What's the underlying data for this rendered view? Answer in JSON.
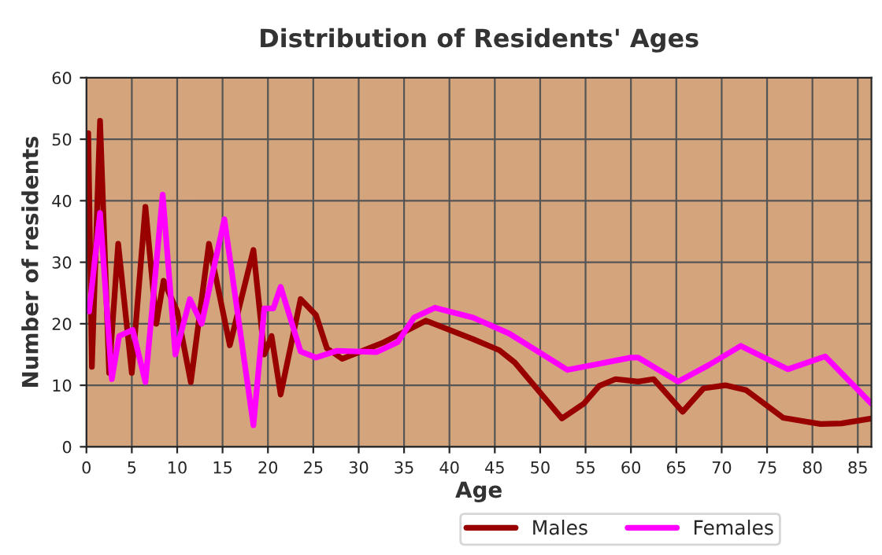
{
  "chart_data": {
    "type": "line",
    "title": "Distribution of Residents' Ages",
    "xlabel": "Age",
    "ylabel": "Number of residents",
    "xlim": [
      0,
      86.5
    ],
    "xticks": [
      0,
      5,
      10,
      15,
      20,
      25,
      30,
      35,
      40,
      45,
      50,
      55,
      60,
      65,
      70,
      75,
      80,
      85
    ],
    "ylim": [
      0,
      60
    ],
    "yticks": [
      0,
      10,
      20,
      30,
      40,
      50,
      60
    ],
    "grid": true,
    "legend": "bottom",
    "series": [
      {
        "name": "Males",
        "color": "#990000",
        "x": [
          0.2,
          0.6,
          1.5,
          2.5,
          3.5,
          5,
          6.5,
          7.7,
          8.5,
          10,
          11.5,
          13.5,
          15.8,
          18.4,
          19.6,
          20.4,
          21.4,
          23.6,
          25.3,
          26.5,
          28.2,
          32.8,
          37.4,
          42.6,
          45.5,
          47.2,
          52.4,
          54.8,
          56.5,
          58.3,
          60.8,
          62.5,
          65.7,
          68,
          70.4,
          72.7,
          76.8,
          80.9,
          83.2,
          86.5
        ],
        "values": [
          51,
          13,
          53,
          12,
          33,
          12,
          39,
          20,
          27,
          22,
          10.5,
          33,
          16.5,
          32,
          15,
          18,
          8.5,
          24,
          21.4,
          16,
          14.3,
          17,
          20.5,
          17.5,
          15.7,
          13.7,
          4.6,
          7,
          9.9,
          11,
          10.6,
          11,
          5.7,
          9.5,
          10,
          9.2,
          4.7,
          3.7,
          3.8,
          4.6
        ]
      },
      {
        "name": "Females",
        "color": "#ff00ff",
        "x": [
          0.3,
          1.5,
          2.8,
          3.6,
          5.1,
          6.5,
          8.4,
          9.8,
          11.4,
          12.7,
          15.2,
          18.4,
          19.6,
          20.6,
          21.4,
          23.6,
          25.3,
          27.6,
          32,
          34.3,
          36.1,
          38.4,
          42.6,
          46.6,
          53,
          56.5,
          60,
          60.8,
          65.2,
          68.6,
          72.1,
          77.3,
          81.4,
          86.5
        ],
        "values": [
          22,
          38,
          11,
          18,
          19,
          10.5,
          41,
          15,
          24,
          20,
          37,
          3.5,
          22.5,
          22.5,
          26,
          15.5,
          14.5,
          15.6,
          15.4,
          17,
          21,
          22.6,
          21,
          18.4,
          12.5,
          13.5,
          14.5,
          14.5,
          10.6,
          13.3,
          16.4,
          12.6,
          14.7,
          7
        ]
      }
    ]
  }
}
